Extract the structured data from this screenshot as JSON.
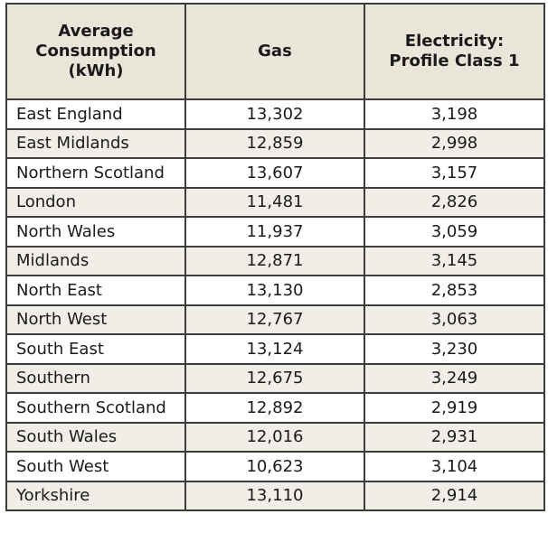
{
  "header": {
    "region_lines": [
      "Average",
      "Consumption",
      "(kWh)"
    ],
    "gas": "Gas",
    "electricity_lines": [
      "Electricity:",
      "Profile Class 1"
    ]
  },
  "rows": [
    {
      "region": "East England",
      "gas": "13,302",
      "electricity": "3,198"
    },
    {
      "region": "East Midlands",
      "gas": "12,859",
      "electricity": "2,998"
    },
    {
      "region": "Northern Scotland",
      "gas": "13,607",
      "electricity": "3,157"
    },
    {
      "region": "London",
      "gas": "11,481",
      "electricity": "2,826"
    },
    {
      "region": "North Wales",
      "gas": "11,937",
      "electricity": "3,059"
    },
    {
      "region": "Midlands",
      "gas": "12,871",
      "electricity": "3,145"
    },
    {
      "region": "North East",
      "gas": "13,130",
      "electricity": "2,853"
    },
    {
      "region": "North West",
      "gas": "12,767",
      "electricity": "3,063"
    },
    {
      "region": "South East",
      "gas": "13,124",
      "electricity": "3,230"
    },
    {
      "region": "Southern",
      "gas": "12,675",
      "electricity": "3,249"
    },
    {
      "region": "Southern Scotland",
      "gas": "12,892",
      "electricity": "2,919"
    },
    {
      "region": "South Wales",
      "gas": "12,016",
      "electricity": "2,931"
    },
    {
      "region": "South West",
      "gas": "10,623",
      "electricity": "3,104"
    },
    {
      "region": "Yorkshire",
      "gas": "13,110",
      "electricity": "2,914"
    }
  ]
}
